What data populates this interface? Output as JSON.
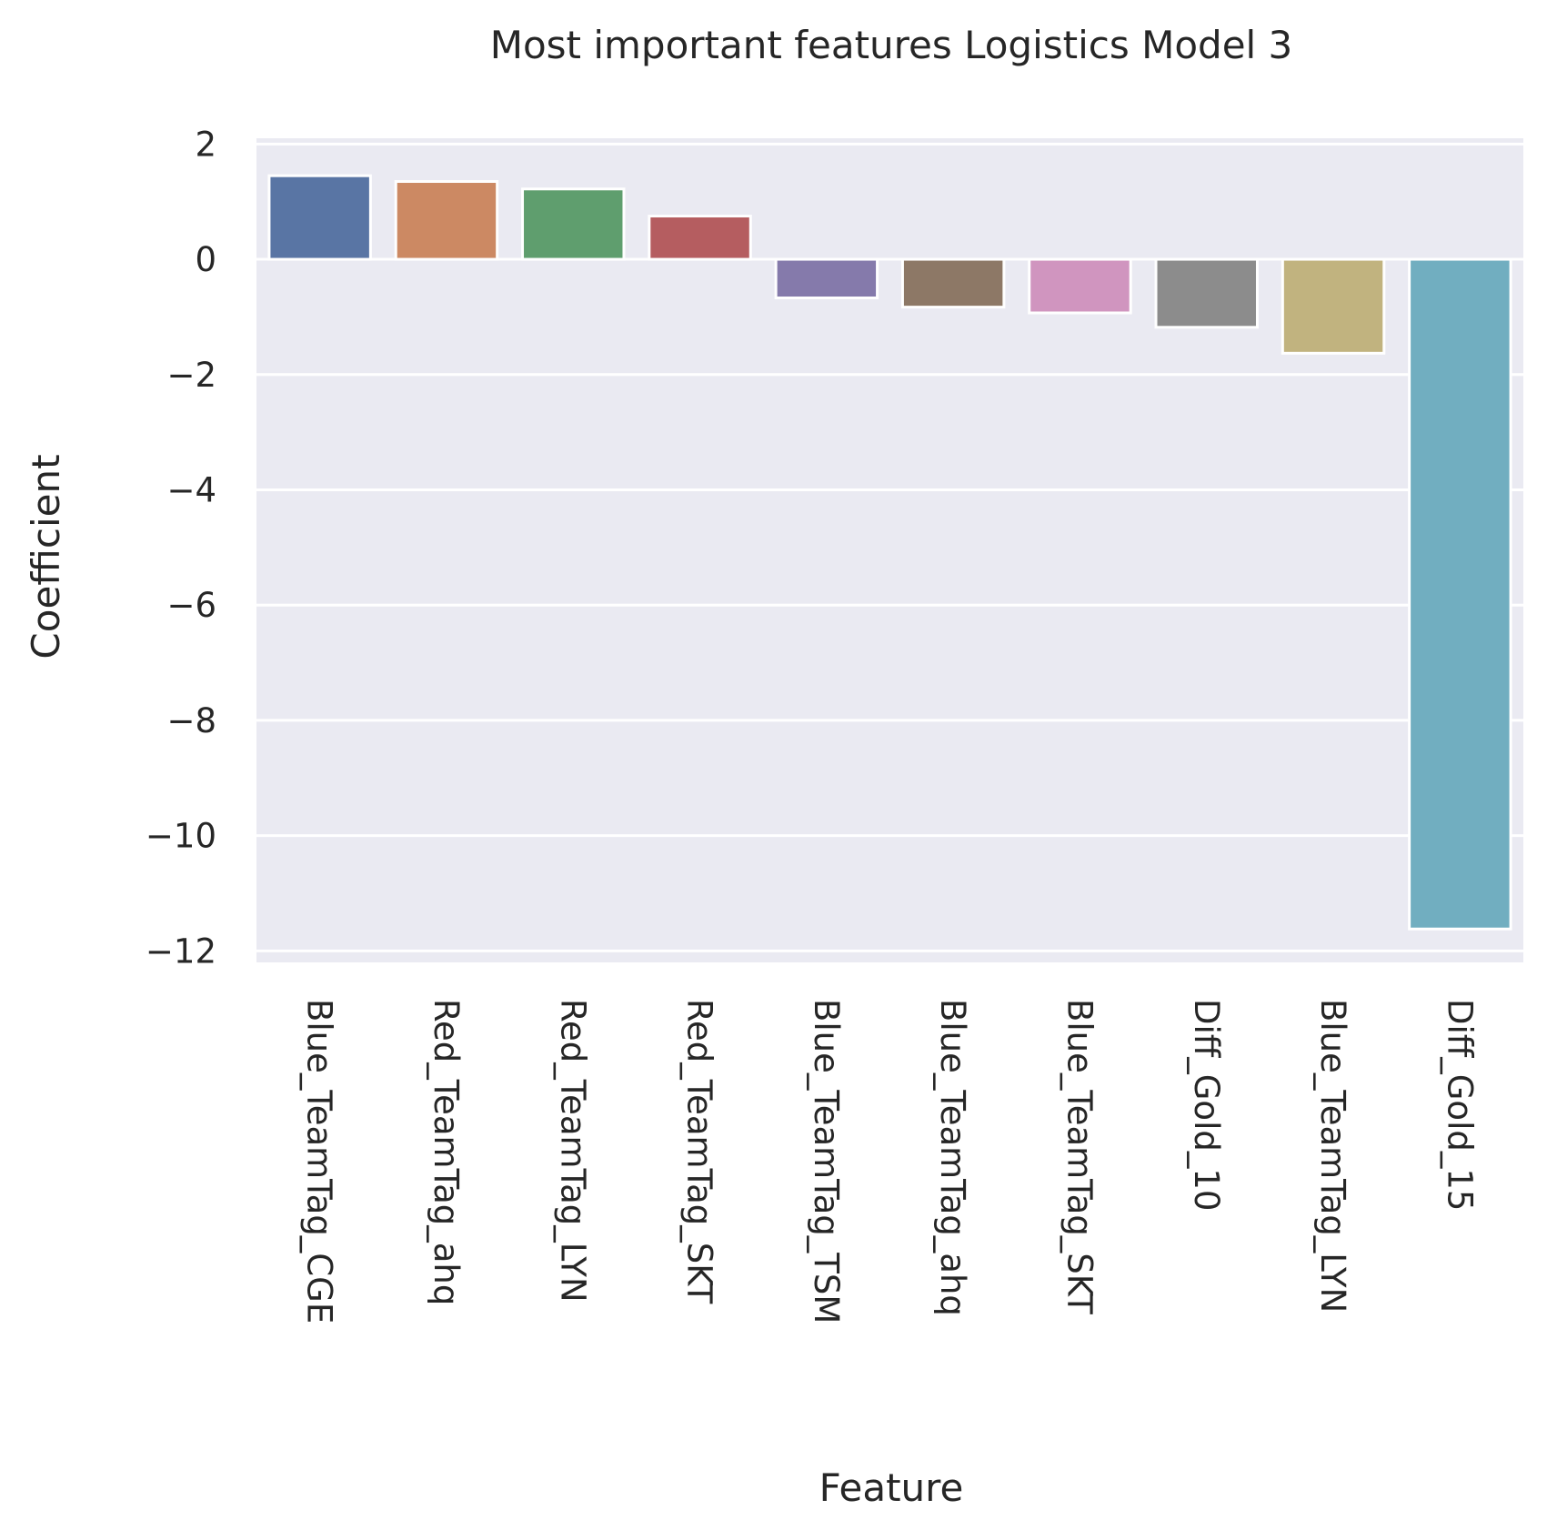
{
  "chart_data": {
    "type": "bar",
    "title": "Most important features Logistics Model 3",
    "xlabel": "Feature",
    "ylabel": "Coefficient",
    "ylim": [
      -12.2,
      2.1
    ],
    "yticks": [
      2,
      0,
      -2,
      -4,
      -6,
      -8,
      -10,
      -12
    ],
    "ytick_labels": [
      "2",
      "0",
      "−2",
      "−4",
      "−6",
      "−8",
      "−10",
      "−12"
    ],
    "grid": true,
    "categories": [
      "Blue_TeamTag_CGE",
      "Red_TeamTag_ahq",
      "Red_TeamTag_LYN",
      "Red_TeamTag_SKT",
      "Blue_TeamTag_TSM",
      "Blue_TeamTag_ahq",
      "Blue_TeamTag_SKT",
      "Diff_Gold_10",
      "Blue_TeamTag_LYN",
      "Diff_Gold_15"
    ],
    "values": [
      1.45,
      1.35,
      1.22,
      0.75,
      -0.67,
      -0.83,
      -0.93,
      -1.18,
      -1.63,
      -11.62
    ],
    "colors": [
      "#5975a4",
      "#cc8963",
      "#5f9e6e",
      "#b55d60",
      "#857aab",
      "#8d7866",
      "#d095bf",
      "#8c8c8c",
      "#c1b37f",
      "#71aec0"
    ],
    "plot_background": "#eaeaf2",
    "grid_color": "#ffffff"
  }
}
